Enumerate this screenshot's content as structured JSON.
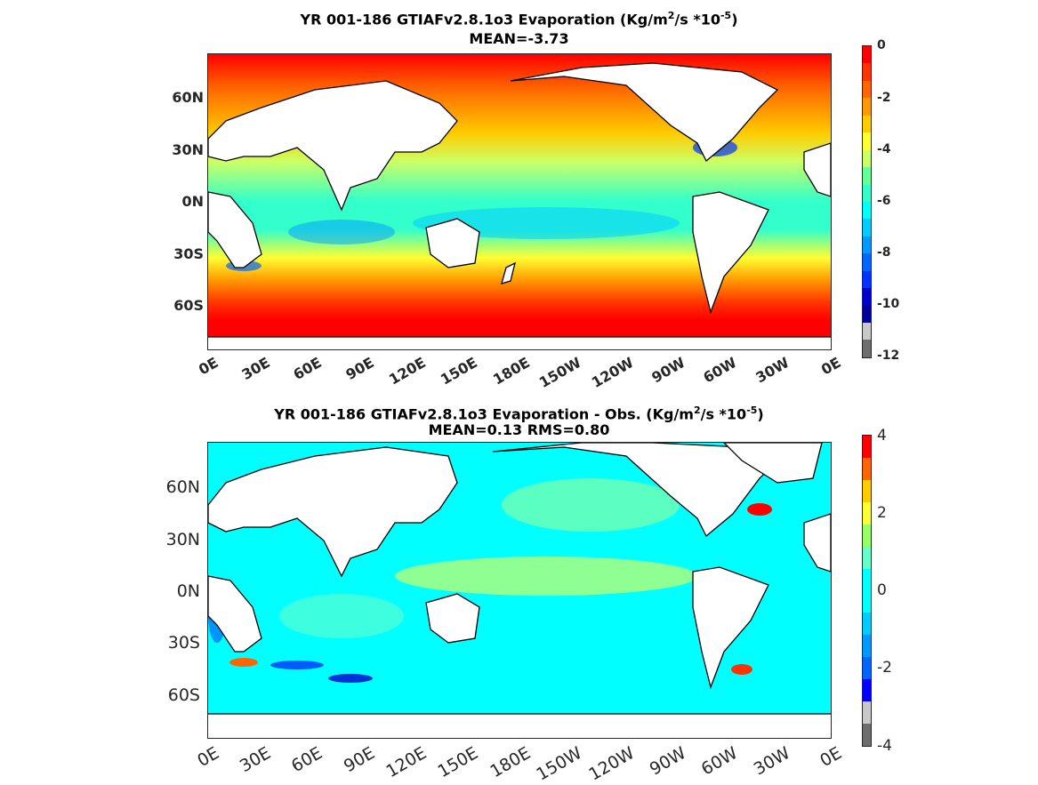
{
  "panel1": {
    "title_line1_pre": "YR 001-186 GTIAFv2.8.1o3  Evaporation (Kg/m",
    "title_sup1": "2",
    "title_mid": "/s *10",
    "title_sup2": "-5",
    "title_end": ")",
    "title_line2": "MEAN=-3.73",
    "lat_labels": [
      "60N",
      "30N",
      "0N",
      "30S",
      "60S"
    ],
    "lon_labels": [
      "0E",
      "30E",
      "60E",
      "90E",
      "120E",
      "150E",
      "180E",
      "150W",
      "120W",
      "90W",
      "60W",
      "30W",
      "0E"
    ],
    "colorbar_labels": [
      "0",
      "-2",
      "-4",
      "-6",
      "-8",
      "-10",
      "-12"
    ],
    "colorbar_colors": [
      "#ff0000",
      "#ff3300",
      "#ff6600",
      "#ff9900",
      "#ffcc00",
      "#ffff33",
      "#ccff66",
      "#66ff99",
      "#33ffcc",
      "#00ffff",
      "#00ccff",
      "#0099ff",
      "#0066ff",
      "#0033ff",
      "#0000cc",
      "#000099",
      "#c8c8c8",
      "#6e6e6e"
    ]
  },
  "panel2": {
    "title_line1_pre": "YR 001-186 GTIAFv2.8.1o3 Evaporation - Obs. (Kg/m",
    "title_sup1": "2",
    "title_mid": "/s *10",
    "title_sup2": "-5",
    "title_end": ")",
    "title_line2": "MEAN=0.13   RMS=0.80",
    "lat_labels": [
      "60N",
      "30N",
      "0N",
      "30S",
      "60S"
    ],
    "lon_labels": [
      "0E",
      "30E",
      "60E",
      "90E",
      "120E",
      "150E",
      "180E",
      "150W",
      "120W",
      "90W",
      "60W",
      "30W",
      "0E"
    ],
    "colorbar_labels": [
      "4",
      "2",
      "0",
      "-2",
      "-4"
    ],
    "colorbar_colors": [
      "#ff0000",
      "#ff6600",
      "#ffcc00",
      "#ffff33",
      "#99ff66",
      "#66ffcc",
      "#00ffff",
      "#00ffff",
      "#00ccff",
      "#0099ff",
      "#0066ff",
      "#0000ff",
      "#c8c8c8",
      "#6e6e6e"
    ]
  }
}
